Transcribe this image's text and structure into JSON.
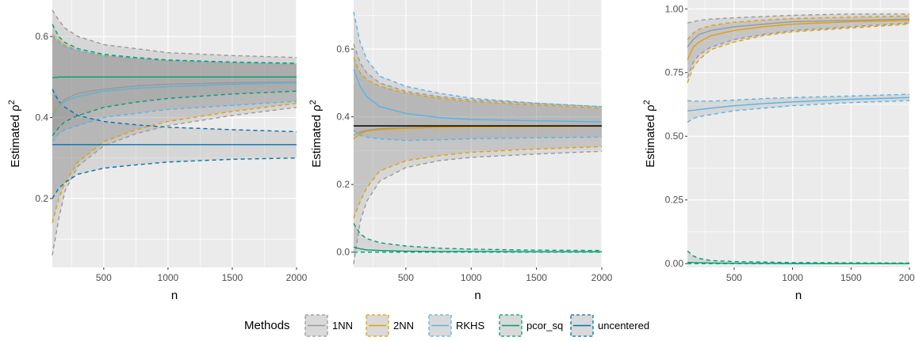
{
  "legend": {
    "title": "Methods",
    "entries": [
      {
        "name": "1NN",
        "color": "#999999"
      },
      {
        "name": "2NN",
        "color": "#E69F00"
      },
      {
        "name": "RKHS",
        "color": "#56B4E9"
      },
      {
        "name": "pcor_sq",
        "color": "#009E73"
      },
      {
        "name": "uncentered",
        "color": "#0072B2"
      }
    ]
  },
  "chart_data": [
    {
      "type": "line",
      "xlabel": "n",
      "ylabel_text": "Estimated ρ",
      "ylabel_sup": "2",
      "xlim": [
        100,
        2000
      ],
      "ylim": [
        0.03,
        0.69
      ],
      "xticks": [
        500,
        1000,
        1500,
        2000
      ],
      "yticks": [
        0.2,
        0.4,
        0.6
      ],
      "ytick_labels": [
        "0.2",
        "0.4",
        "0.6"
      ],
      "grid": true,
      "series": [
        {
          "name": "1NN",
          "x": [
            100,
            150,
            200,
            300,
            500,
            750,
            1000,
            1500,
            2000
          ],
          "mean": [
            0.4,
            0.43,
            0.445,
            0.46,
            0.47,
            0.478,
            0.482,
            0.486,
            0.488
          ],
          "lower": [
            0.06,
            0.15,
            0.22,
            0.28,
            0.33,
            0.36,
            0.38,
            0.405,
            0.425
          ],
          "upper": [
            0.665,
            0.64,
            0.62,
            0.6,
            0.58,
            0.57,
            0.56,
            0.553,
            0.548
          ]
        },
        {
          "name": "2NN",
          "x": [
            100,
            150,
            200,
            300,
            500,
            750,
            1000,
            1500,
            2000
          ],
          "mean": [
            0.41,
            0.43,
            0.44,
            0.452,
            0.465,
            0.472,
            0.476,
            0.482,
            0.486
          ],
          "lower": [
            0.14,
            0.2,
            0.24,
            0.29,
            0.34,
            0.37,
            0.39,
            0.415,
            0.435
          ],
          "upper": [
            0.605,
            0.59,
            0.578,
            0.565,
            0.552,
            0.546,
            0.541,
            0.536,
            0.532
          ]
        },
        {
          "name": "RKHS",
          "x": [
            100,
            150,
            200,
            300,
            500,
            750,
            1000,
            1500,
            2000
          ],
          "mean": [
            0.405,
            0.428,
            0.44,
            0.452,
            0.465,
            0.472,
            0.476,
            0.482,
            0.486
          ],
          "lower": [
            0.34,
            0.36,
            0.37,
            0.38,
            0.4,
            0.41,
            0.42,
            0.43,
            0.44
          ],
          "upper": [
            0.6,
            0.585,
            0.575,
            0.565,
            0.553,
            0.546,
            0.54,
            0.535,
            0.532
          ]
        },
        {
          "name": "pcor_sq",
          "x": [
            100,
            150,
            200,
            300,
            500,
            750,
            1000,
            1500,
            2000
          ],
          "mean": [
            0.498,
            0.5,
            0.5,
            0.5,
            0.5,
            0.5,
            0.5,
            0.5,
            0.5
          ],
          "lower": [
            0.355,
            0.375,
            0.39,
            0.405,
            0.425,
            0.438,
            0.447,
            0.458,
            0.465
          ],
          "upper": [
            0.63,
            0.6,
            0.585,
            0.57,
            0.556,
            0.548,
            0.542,
            0.537,
            0.534
          ]
        },
        {
          "name": "uncentered",
          "x": [
            100,
            150,
            200,
            300,
            500,
            750,
            1000,
            1500,
            2000
          ],
          "mean": [
            0.333,
            0.333,
            0.333,
            0.333,
            0.333,
            0.333,
            0.333,
            0.333,
            0.333
          ],
          "lower": [
            0.2,
            0.225,
            0.24,
            0.26,
            0.275,
            0.283,
            0.29,
            0.297,
            0.3
          ],
          "upper": [
            0.47,
            0.44,
            0.425,
            0.405,
            0.39,
            0.382,
            0.376,
            0.37,
            0.365
          ]
        }
      ]
    },
    {
      "type": "line",
      "xlabel": "n",
      "ylabel_text": "Estimated ρ",
      "ylabel_sup": "2",
      "xlim": [
        100,
        2000
      ],
      "ylim": [
        -0.045,
        0.745
      ],
      "xticks": [
        500,
        1000,
        1500,
        2000
      ],
      "yticks": [
        0.0,
        0.2,
        0.4,
        0.6
      ],
      "ytick_labels": [
        "0.0",
        "0.2",
        "0.4",
        "0.6"
      ],
      "hline": 0.373,
      "grid": true,
      "series": [
        {
          "name": "1NN",
          "x": [
            100,
            150,
            200,
            300,
            500,
            750,
            1000,
            1500,
            2000
          ],
          "mean": [
            0.345,
            0.355,
            0.36,
            0.365,
            0.368,
            0.37,
            0.371,
            0.372,
            0.372
          ],
          "lower": [
            -0.035,
            0.09,
            0.15,
            0.21,
            0.25,
            0.27,
            0.28,
            0.29,
            0.298
          ],
          "upper": [
            0.615,
            0.56,
            0.53,
            0.5,
            0.475,
            0.46,
            0.45,
            0.44,
            0.43
          ]
        },
        {
          "name": "2NN",
          "x": [
            100,
            150,
            200,
            300,
            500,
            750,
            1000,
            1500,
            2000
          ],
          "mean": [
            0.335,
            0.35,
            0.358,
            0.362,
            0.366,
            0.369,
            0.37,
            0.371,
            0.372
          ],
          "lower": [
            0.1,
            0.15,
            0.19,
            0.24,
            0.27,
            0.285,
            0.295,
            0.305,
            0.312
          ],
          "upper": [
            0.575,
            0.53,
            0.51,
            0.49,
            0.47,
            0.455,
            0.445,
            0.435,
            0.425
          ]
        },
        {
          "name": "RKHS",
          "x": [
            100,
            150,
            200,
            300,
            500,
            750,
            1000,
            1500,
            2000
          ],
          "mean": [
            0.54,
            0.49,
            0.46,
            0.43,
            0.41,
            0.398,
            0.392,
            0.388,
            0.385
          ],
          "lower": [
            0.36,
            0.345,
            0.34,
            0.335,
            0.33,
            0.332,
            0.335,
            0.338,
            0.34
          ],
          "upper": [
            0.71,
            0.62,
            0.57,
            0.52,
            0.49,
            0.47,
            0.455,
            0.44,
            0.43
          ]
        },
        {
          "name": "pcor_sq",
          "x": [
            100,
            150,
            200,
            300,
            500,
            750,
            1000,
            1500,
            2000
          ],
          "mean": [
            0.015,
            0.01,
            0.007,
            0.005,
            0.003,
            0.002,
            0.002,
            0.001,
            0.001
          ],
          "lower": [
            0.0,
            0.0,
            0.0,
            0.0,
            0.0,
            0.0,
            0.0,
            0.0,
            0.0
          ],
          "upper": [
            0.085,
            0.055,
            0.04,
            0.028,
            0.018,
            0.012,
            0.009,
            0.006,
            0.005
          ]
        }
      ]
    },
    {
      "type": "line",
      "xlabel": "n",
      "ylabel_text": "Estimated ρ",
      "ylabel_sup": "2",
      "xlim": [
        100,
        2000
      ],
      "ylim": [
        -0.015,
        1.035
      ],
      "xticks": [
        500,
        1000,
        1500,
        2000
      ],
      "yticks": [
        0.0,
        0.25,
        0.5,
        0.75,
        1.0
      ],
      "ytick_labels": [
        "0.00",
        "0.25",
        "0.50",
        "0.75",
        "1.00"
      ],
      "grid": true,
      "series": [
        {
          "name": "1NN",
          "x": [
            100,
            150,
            200,
            300,
            500,
            750,
            1000,
            1500,
            2000
          ],
          "mean": [
            0.85,
            0.88,
            0.9,
            0.915,
            0.93,
            0.94,
            0.95,
            0.955,
            0.96
          ],
          "lower": [
            0.73,
            0.79,
            0.82,
            0.85,
            0.88,
            0.9,
            0.915,
            0.93,
            0.945
          ],
          "upper": [
            0.945,
            0.95,
            0.955,
            0.96,
            0.965,
            0.97,
            0.975,
            0.98,
            0.98
          ]
        },
        {
          "name": "2NN",
          "x": [
            100,
            150,
            200,
            300,
            500,
            750,
            1000,
            1500,
            2000
          ],
          "mean": [
            0.8,
            0.85,
            0.87,
            0.895,
            0.915,
            0.93,
            0.94,
            0.95,
            0.955
          ],
          "lower": [
            0.71,
            0.77,
            0.8,
            0.84,
            0.87,
            0.895,
            0.91,
            0.925,
            0.94
          ],
          "upper": [
            0.88,
            0.905,
            0.92,
            0.935,
            0.948,
            0.956,
            0.962,
            0.968,
            0.972
          ]
        },
        {
          "name": "RKHS",
          "x": [
            100,
            150,
            200,
            300,
            500,
            750,
            1000,
            1500,
            2000
          ],
          "mean": [
            0.6,
            0.602,
            0.605,
            0.61,
            0.62,
            0.628,
            0.635,
            0.645,
            0.652
          ],
          "lower": [
            0.555,
            0.57,
            0.577,
            0.585,
            0.6,
            0.61,
            0.62,
            0.632,
            0.64
          ],
          "upper": [
            0.64,
            0.638,
            0.638,
            0.638,
            0.642,
            0.648,
            0.652,
            0.658,
            0.665
          ]
        },
        {
          "name": "pcor_sq",
          "x": [
            100,
            150,
            200,
            300,
            500,
            750,
            1000,
            1500,
            2000
          ],
          "mean": [
            0.005,
            0.004,
            0.003,
            0.002,
            0.001,
            0.001,
            0.0,
            0.0,
            0.0
          ],
          "lower": [
            0.0,
            0.0,
            0.0,
            0.0,
            0.0,
            0.0,
            0.0,
            0.0,
            0.0
          ],
          "upper": [
            0.05,
            0.03,
            0.02,
            0.012,
            0.008,
            0.006,
            0.004,
            0.003,
            0.002
          ]
        }
      ]
    }
  ]
}
